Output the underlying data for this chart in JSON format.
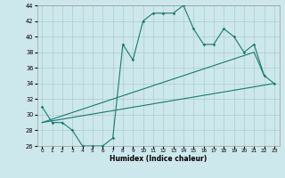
{
  "xlabel": "Humidex (Indice chaleur)",
  "x": [
    0,
    1,
    2,
    3,
    4,
    5,
    6,
    7,
    8,
    9,
    10,
    11,
    12,
    13,
    14,
    15,
    16,
    17,
    18,
    19,
    20,
    21,
    22,
    23
  ],
  "y_main": [
    31,
    29,
    29,
    28,
    26,
    26,
    26,
    27,
    39,
    37,
    42,
    43,
    43,
    43,
    44,
    41,
    39,
    39,
    41,
    40,
    38,
    39,
    35,
    34
  ],
  "trend1_x": [
    0,
    21,
    22
  ],
  "trend1_y": [
    29,
    38,
    35
  ],
  "trend2_x": [
    0,
    23
  ],
  "trend2_y": [
    29,
    34
  ],
  "line_color": "#1a7a6e",
  "bg_color": "#cde8ec",
  "grid_color": "#aacccc",
  "ylim": [
    26,
    44
  ],
  "xlim": [
    -0.5,
    23.5
  ],
  "yticks": [
    26,
    28,
    30,
    32,
    34,
    36,
    38,
    40,
    42,
    44
  ],
  "xticks": [
    0,
    1,
    2,
    3,
    4,
    5,
    6,
    7,
    8,
    9,
    10,
    11,
    12,
    13,
    14,
    15,
    16,
    17,
    18,
    19,
    20,
    21,
    22,
    23
  ]
}
